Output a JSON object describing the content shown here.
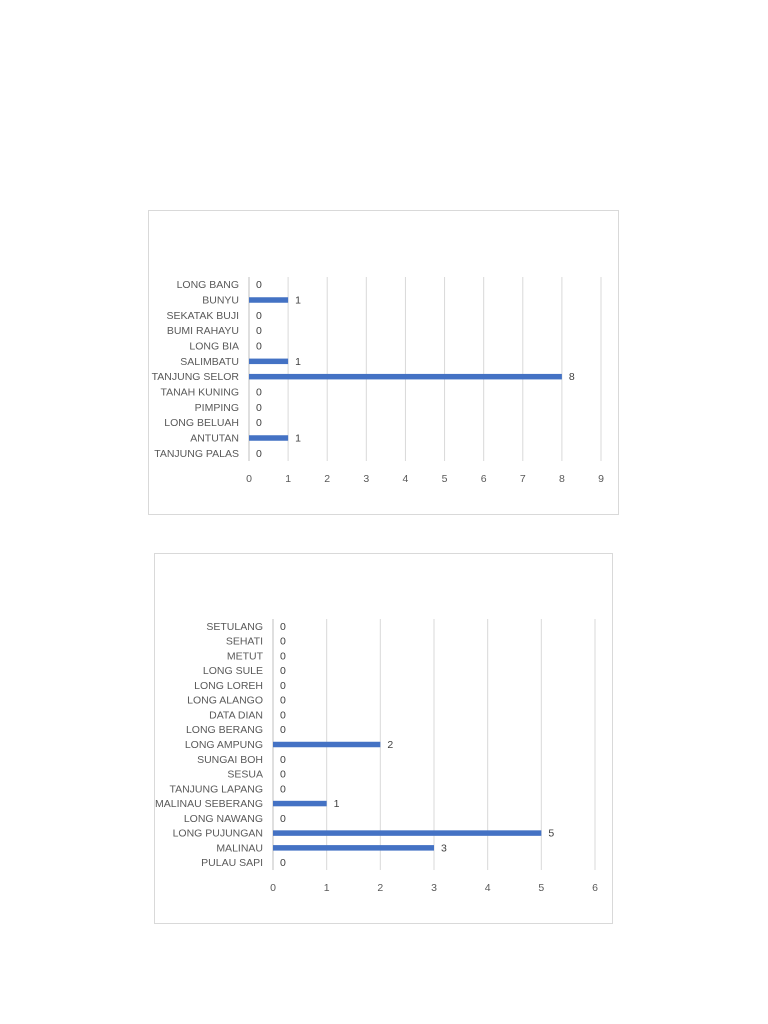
{
  "chart_data": [
    {
      "type": "bar",
      "orientation": "horizontal",
      "categories": [
        "LONG BANG",
        "BUNYU",
        "SEKATAK BUJI",
        "BUMI RAHAYU",
        "LONG BIA",
        "SALIMBATU",
        "TANJUNG SELOR",
        "TANAH KUNING",
        "PIMPING",
        "LONG BELUAH",
        "ANTUTAN",
        "TANJUNG PALAS"
      ],
      "values": [
        0,
        1,
        0,
        0,
        0,
        1,
        8,
        0,
        0,
        0,
        1,
        0
      ],
      "xlim": [
        0,
        9
      ],
      "xticks": [
        "0",
        "1",
        "2",
        "3",
        "4",
        "5",
        "6",
        "7",
        "8",
        "9"
      ],
      "grid": true,
      "data_labels": true,
      "bar_color": "#4472c4",
      "grid_color": "#d9d9d9"
    },
    {
      "type": "bar",
      "orientation": "horizontal",
      "categories": [
        "SETULANG",
        "SEHATI",
        "METUT",
        "LONG SULE",
        "LONG LOREH",
        "LONG ALANGO",
        "DATA DIAN",
        "LONG BERANG",
        "LONG AMPUNG",
        "SUNGAI BOH",
        "SESUA",
        "TANJUNG LAPANG",
        "MALINAU SEBERANG",
        "LONG NAWANG",
        "LONG PUJUNGAN",
        "MALINAU",
        "PULAU SAPI"
      ],
      "values": [
        0,
        0,
        0,
        0,
        0,
        0,
        0,
        0,
        2,
        0,
        0,
        0,
        1,
        0,
        5,
        3,
        0
      ],
      "xlim": [
        0,
        6
      ],
      "xticks": [
        "0",
        "1",
        "2",
        "3",
        "4",
        "5",
        "6"
      ],
      "grid": true,
      "data_labels": true,
      "bar_color": "#4472c4",
      "grid_color": "#d9d9d9"
    }
  ]
}
